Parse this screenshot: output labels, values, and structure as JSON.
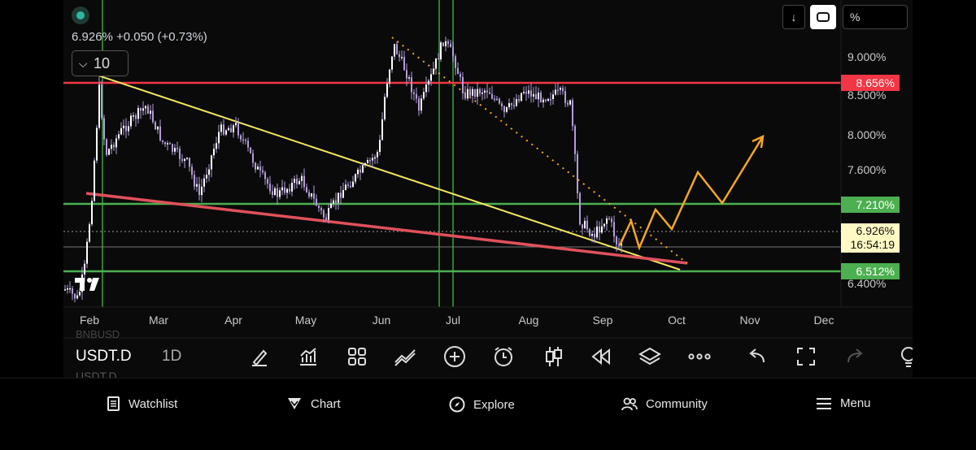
{
  "header": {
    "quote": "6.926% +0.050 (+0.73%)",
    "interval": "10",
    "top_buttons": {
      "down": "↓",
      "pct": "%"
    }
  },
  "price_axis": {
    "labels": [
      "9.000%",
      "8.500%",
      "8.000%",
      "7.600%",
      "6.400%"
    ],
    "tags": [
      {
        "text": "8.656%",
        "color": "#f23645"
      },
      {
        "text": "7.210%",
        "color": "#4caf50"
      },
      {
        "text": "6.512%",
        "color": "#4caf50"
      }
    ],
    "current": {
      "value": "6.926%",
      "countdown": "16:54:19"
    }
  },
  "time_axis": [
    "Feb",
    "Mar",
    "Apr",
    "May",
    "Jun",
    "Jul",
    "Aug",
    "Sep",
    "Oct",
    "Nov",
    "Dec"
  ],
  "chart_data": {
    "type": "candlestick",
    "symbol": "USDT.D",
    "timeframe": "1D",
    "last": 6.926,
    "change": 0.05,
    "change_pct": 0.73,
    "horizontal_levels": [
      8.656,
      7.21,
      6.512
    ],
    "y_range": [
      6.33,
      9.35
    ],
    "x_range": [
      "Jan",
      "Dec"
    ]
  },
  "toolbar": {
    "symbol": "USDT.D",
    "timeframe": "1D",
    "ghost_top": "BNBUSD",
    "ghost_bottom": "USDT.D"
  },
  "nav": {
    "watchlist": "Watchlist",
    "chart": "Chart",
    "explore": "Explore",
    "community": "Community",
    "menu": "Menu"
  },
  "colors": {
    "candle": "#b39ddb",
    "resistance": "#f23645",
    "support": "#4caf50",
    "trendline_yellow": "#f5e663",
    "trendline_red": "#e0515a",
    "projection": "#f5a623",
    "vertical_markers": "#2e7d32"
  }
}
